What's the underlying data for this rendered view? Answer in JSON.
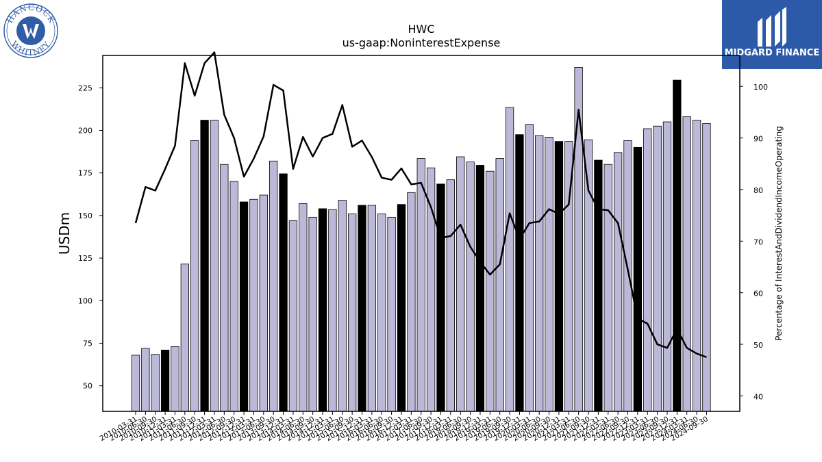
{
  "logos": {
    "company_seal_text": "HANCOCK WHITNEY",
    "brand_name": "MIDGARD FINANCE",
    "brand_color": "#2c5aa8",
    "seal_color": "#2f5da8"
  },
  "chart_data": {
    "type": "bar",
    "title": "HWC",
    "subtitle": "us-gaap:NoninterestExpense",
    "ylabel": "USDm",
    "y2label": "Percentage of InterestAndDividendIncomeOperating",
    "ylim": [
      35,
      244
    ],
    "y2lim": [
      37,
      106
    ],
    "yticks": [
      50,
      75,
      100,
      125,
      150,
      175,
      200,
      225
    ],
    "y2ticks": [
      40,
      50,
      60,
      70,
      80,
      90,
      100
    ],
    "grid": false,
    "colors": {
      "bar": "#bcb9d8",
      "bar_highlight": "#000000",
      "line": "#000000"
    },
    "categories": [
      "2010-03-31",
      "2010-06-30",
      "2010-09-30",
      "2010-12-31",
      "2011-03-31",
      "2011-06-30",
      "2011-09-30",
      "2011-12-31",
      "2012-03-31",
      "2012-06-30",
      "2012-09-30",
      "2012-12-31",
      "2013-03-31",
      "2013-06-30",
      "2013-09-30",
      "2013-12-31",
      "2014-03-31",
      "2014-06-30",
      "2014-09-30",
      "2014-12-31",
      "2015-03-31",
      "2015-06-30",
      "2015-09-30",
      "2015-12-31",
      "2016-03-31",
      "2016-06-30",
      "2016-09-30",
      "2016-12-31",
      "2017-03-31",
      "2017-06-30",
      "2017-09-30",
      "2017-12-31",
      "2018-03-31",
      "2018-06-30",
      "2018-09-30",
      "2018-12-31",
      "2019-03-31",
      "2019-06-30",
      "2019-09-30",
      "2019-12-31",
      "2020-03-31",
      "2020-06-30",
      "2020-09-30",
      "2020-12-31",
      "2021-03-31",
      "2021-06-30",
      "2021-09-30",
      "2021-12-31",
      "2022-03-31",
      "2022-06-30",
      "2022-09-30",
      "2022-12-31",
      "2023-03-31",
      "2023-06-30",
      "2023-09-30",
      "2023-12-31",
      "2024-03-31",
      "2024-06-30",
      "2024-09-30"
    ],
    "series": [
      {
        "type": "bar",
        "values": [
          68,
          72,
          68.5,
          71,
          73,
          121.5,
          194,
          206,
          206,
          180,
          170,
          158,
          159.5,
          162,
          182,
          174.5,
          147,
          157,
          149,
          154,
          153.5,
          159,
          151,
          156,
          156,
          151,
          149,
          156.5,
          163.5,
          183.5,
          178,
          168.5,
          171,
          184.5,
          181.5,
          179.5,
          176,
          183.5,
          213.5,
          197.5,
          203.5,
          197,
          196,
          193.5,
          193.5,
          237,
          194.5,
          182.5,
          180,
          187,
          194,
          190,
          201,
          202.5,
          205,
          229.5,
          208,
          206,
          204
        ],
        "highlight": [
          false,
          false,
          false,
          true,
          false,
          false,
          false,
          true,
          false,
          false,
          false,
          true,
          false,
          false,
          false,
          true,
          false,
          false,
          false,
          true,
          false,
          false,
          false,
          true,
          false,
          false,
          false,
          true,
          false,
          false,
          false,
          true,
          false,
          false,
          false,
          true,
          false,
          false,
          false,
          true,
          false,
          false,
          false,
          true,
          false,
          false,
          false,
          true,
          false,
          false,
          false,
          true,
          false,
          false,
          false,
          true,
          false,
          false,
          false
        ]
      },
      {
        "type": "line",
        "axis": "right",
        "values": [
          73.5,
          80.5,
          79.8,
          84,
          88.5,
          104.5,
          98.2,
          104.5,
          106.6,
          94.5,
          90,
          82.5,
          86,
          90.3,
          100.3,
          99.2,
          84,
          90.2,
          86.4,
          90,
          90.8,
          96.4,
          88.3,
          89.5,
          86.3,
          82.3,
          81.9,
          84.1,
          81,
          81.3,
          76.6,
          70.6,
          71,
          73.2,
          68.9,
          66,
          63.5,
          65.5,
          75.4,
          70.4,
          73.5,
          73.8,
          76.2,
          75.3,
          77.1,
          95.5,
          79.8,
          76.2,
          76,
          73.5,
          64.5,
          55,
          54,
          50,
          49.3,
          53,
          49.3,
          48.2,
          47.5
        ]
      }
    ]
  }
}
